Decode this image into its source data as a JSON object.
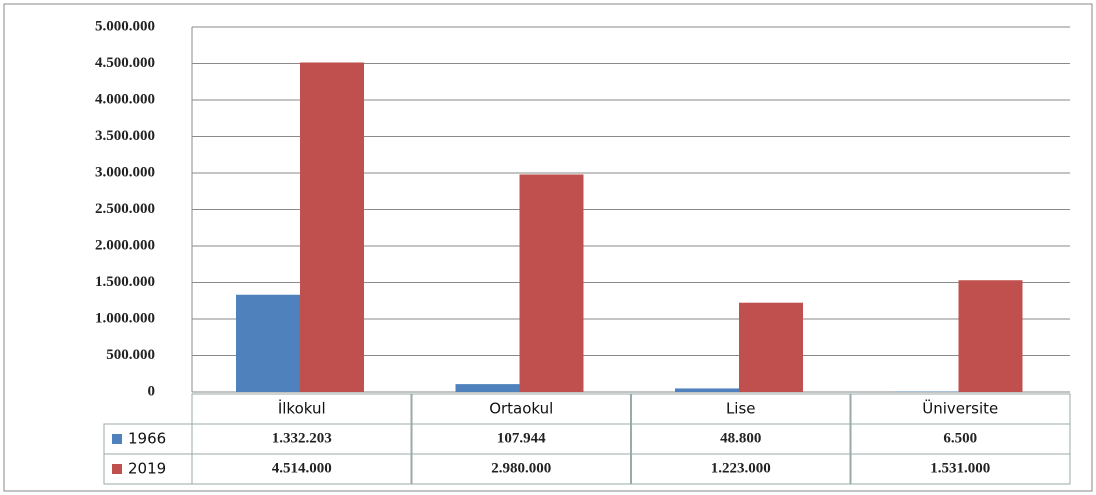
{
  "chart_data": {
    "type": "bar",
    "categories": [
      "İlkokul",
      "Ortaokul",
      "Lise",
      "Üniversite"
    ],
    "series": [
      {
        "name": "1966",
        "color": "#4f81bd",
        "values": [
          1332203,
          107944,
          48800,
          6500
        ],
        "value_labels": [
          "1.332.203",
          "107.944",
          "48.800",
          "6.500"
        ]
      },
      {
        "name": "2019",
        "color": "#c0504d",
        "values": [
          4514000,
          2980000,
          1223000,
          1531000
        ],
        "value_labels": [
          "4.514.000",
          "2.980.000",
          "1.223.000",
          "1.531.000"
        ]
      }
    ],
    "ylim": [
      0,
      5000000
    ],
    "yticks": [
      0,
      {
        "value": 500000,
        "label": "500.000"
      },
      {
        "value": 1000000,
        "label": "1.000.000"
      },
      {
        "value": 1500000,
        "label": "1.500.000"
      },
      {
        "value": 2000000,
        "label": "2.000.000"
      },
      {
        "value": 2500000,
        "label": "2.500.000"
      },
      {
        "value": 3000000,
        "label": "3.000.000"
      },
      {
        "value": 3500000,
        "label": "3.500.000"
      },
      {
        "value": 4000000,
        "label": "4.000.000"
      },
      {
        "value": 4500000,
        "label": "4.500.000"
      },
      {
        "value": 5000000,
        "label": "5.000.000"
      }
    ],
    "grid": true,
    "legend": "table"
  }
}
